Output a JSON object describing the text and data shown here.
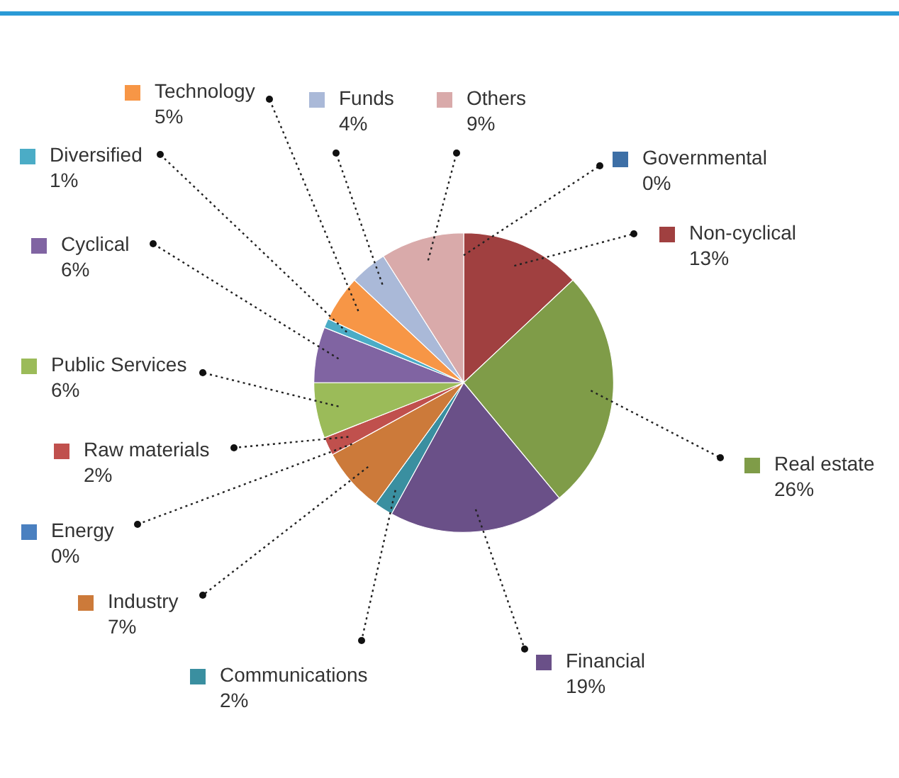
{
  "chart_data": {
    "type": "pie",
    "categories": [
      "Governmental",
      "Non-cyclical",
      "Real estate",
      "Financial",
      "Communications",
      "Industry",
      "Energy",
      "Raw materials",
      "Public Services",
      "Cyclical",
      "Diversified",
      "Technology",
      "Funds",
      "Others"
    ],
    "values": [
      0,
      13,
      26,
      19,
      2,
      7,
      0,
      2,
      6,
      6,
      1,
      5,
      4,
      9
    ],
    "colors": [
      "#3d6fa6",
      "#a04040",
      "#7f9c48",
      "#6a5088",
      "#3a8fa0",
      "#cc7a3a",
      "#4a80c0",
      "#c0504d",
      "#9bbb59",
      "#8064a2",
      "#4bacc6",
      "#f79646",
      "#aab9d8",
      "#d9aaaa"
    ],
    "value_labels": [
      "0%",
      "13%",
      "26%",
      "19%",
      "2%",
      "7%",
      "0%",
      "2%",
      "6%",
      "6%",
      "1%",
      "5%",
      "4%",
      "9%"
    ],
    "legend": "bottom left"
  }
}
